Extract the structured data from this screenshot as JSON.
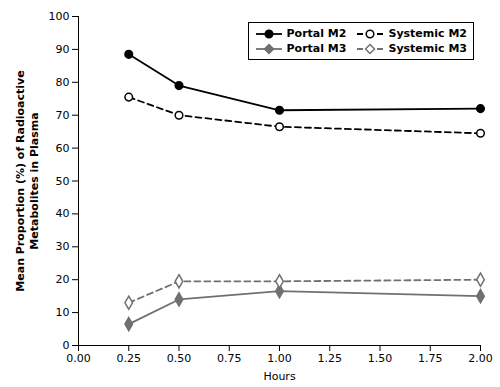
{
  "chart_data": {
    "type": "line",
    "x": [
      0.25,
      0.5,
      1.0,
      2.0
    ],
    "series": [
      {
        "name": "Portal M2",
        "color": "#000000",
        "marker": "circle",
        "line_style": "solid",
        "values": [
          88.5,
          79.0,
          71.5,
          72.0
        ]
      },
      {
        "name": "Systemic M2",
        "color": "#000000",
        "marker": "open-circle",
        "line_style": "dashed",
        "values": [
          75.5,
          70.0,
          66.5,
          64.5
        ]
      },
      {
        "name": "Portal M3",
        "color": "#707070",
        "marker": "diamond",
        "line_style": "solid",
        "values": [
          6.5,
          14.0,
          16.5,
          15.0
        ]
      },
      {
        "name": "Systemic M3",
        "color": "#707070",
        "marker": "open-diamond",
        "line_style": "dashed",
        "values": [
          13.0,
          19.5,
          19.5,
          20.0
        ]
      }
    ],
    "xlabel": "Hours",
    "ylabel": "Mean Proportion (%) of Radioactive\nMetabolites in Plasma",
    "xlim": [
      0.0,
      2.0
    ],
    "ylim": [
      0,
      100
    ],
    "xticks": [
      {
        "value": 0.0,
        "label": "0.00"
      },
      0.25,
      {
        "value": 0.5,
        "label": "0.50"
      },
      0.75,
      {
        "value": 1.0,
        "label": "1.00"
      },
      1.25,
      {
        "value": 1.5,
        "label": "1.50"
      },
      1.75,
      {
        "value": 2.0,
        "label": "2.00"
      }
    ],
    "yticks": [
      0,
      10,
      20,
      30,
      40,
      50,
      60,
      70,
      80,
      90,
      100
    ],
    "grid": false,
    "legend": "upper right"
  }
}
